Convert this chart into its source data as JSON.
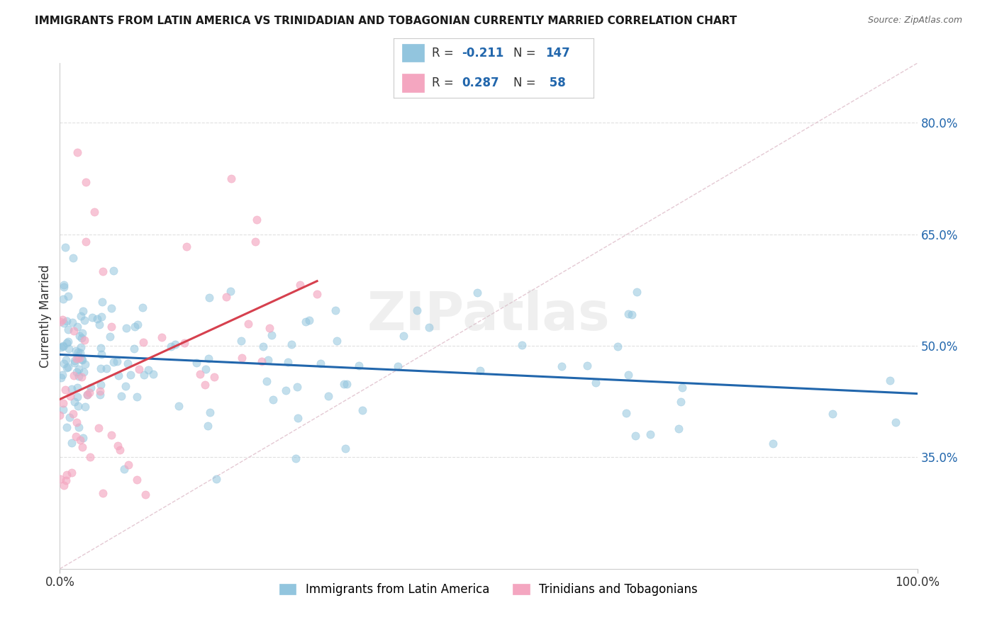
{
  "title": "IMMIGRANTS FROM LATIN AMERICA VS TRINIDADIAN AND TOBAGONIAN CURRENTLY MARRIED CORRELATION CHART",
  "source": "Source: ZipAtlas.com",
  "ylabel": "Currently Married",
  "legend_label1": "Immigrants from Latin America",
  "legend_label2": "Trinidians and Tobagonians",
  "r1": -0.211,
  "n1": 147,
  "r2": 0.287,
  "n2": 58,
  "color_blue": "#92c5de",
  "color_pink": "#f4a6c0",
  "color_blue_line": "#2166ac",
  "color_pink_line": "#d6404e",
  "color_diag": "#d4b8c7",
  "ylim_low": 0.2,
  "ylim_high": 0.88,
  "yticks": [
    0.35,
    0.5,
    0.65,
    0.8
  ],
  "ytick_labels": [
    "35.0%",
    "50.0%",
    "65.0%",
    "80.0%"
  ],
  "watermark_text": "ZIPatlas",
  "watermark_color": "#cccccc",
  "background_color": "#ffffff",
  "grid_color": "#dddddd",
  "title_color": "#1a1a1a",
  "source_color": "#666666",
  "tick_label_color": "#2166ac"
}
